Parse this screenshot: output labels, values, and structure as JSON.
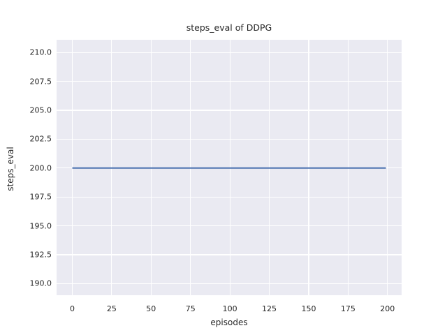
{
  "chart_data": {
    "type": "line",
    "title": "steps_eval of DDPG",
    "xlabel": "episodes",
    "ylabel": "steps_eval",
    "series": [
      {
        "name": "steps_eval",
        "color": "#4c72b0",
        "line_width": 2,
        "x": [
          0,
          199
        ],
        "y": [
          200,
          200
        ],
        "note": "constant value of 200 steps for every evaluated episode from 0 to 199"
      }
    ],
    "xlim": [
      -9.95,
      208.95
    ],
    "ylim": [
      189.0,
      211.1
    ],
    "xticks": [
      0,
      25,
      50,
      75,
      100,
      125,
      150,
      175,
      200
    ],
    "xtick_labels": [
      "0",
      "25",
      "50",
      "75",
      "100",
      "125",
      "150",
      "175",
      "200"
    ],
    "yticks": [
      190.0,
      192.5,
      195.0,
      197.5,
      200.0,
      202.5,
      205.0,
      207.5,
      210.0
    ],
    "ytick_labels": [
      "190.0",
      "192.5",
      "195.0",
      "197.5",
      "200.0",
      "202.5",
      "205.0",
      "207.5",
      "210.0"
    ],
    "grid": true,
    "legend": null,
    "style": {
      "figure_background": "#ffffff",
      "plot_background": "#eaeaf2",
      "grid_color": "#ffffff",
      "text_color": "#262626"
    }
  }
}
